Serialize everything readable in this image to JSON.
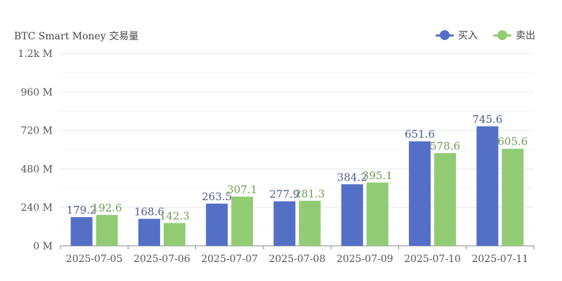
{
  "chart_data": {
    "type": "bar",
    "title": "BTC Smart Money 交易量",
    "categories": [
      "2025-07-05",
      "2025-07-06",
      "2025-07-07",
      "2025-07-08",
      "2025-07-09",
      "2025-07-10",
      "2025-07-11"
    ],
    "series": [
      {
        "name": "买入",
        "color": "#5470c6",
        "label_color": "#4b5a8a",
        "values": [
          179.2,
          168.6,
          263.5,
          277.9,
          384.2,
          651.6,
          745.6
        ]
      },
      {
        "name": "卖出",
        "color": "#91cc75",
        "label_color": "#6f9a52",
        "values": [
          192.6,
          142.3,
          307.1,
          281.3,
          395.1,
          578.6,
          605.6
        ]
      }
    ],
    "y_ticks": [
      "0 M",
      "240 M",
      "480 M",
      "720 M",
      "960 M",
      "1.2k M"
    ],
    "ylim": [
      0,
      1200
    ],
    "legend_position": "top-right",
    "grid": true
  }
}
